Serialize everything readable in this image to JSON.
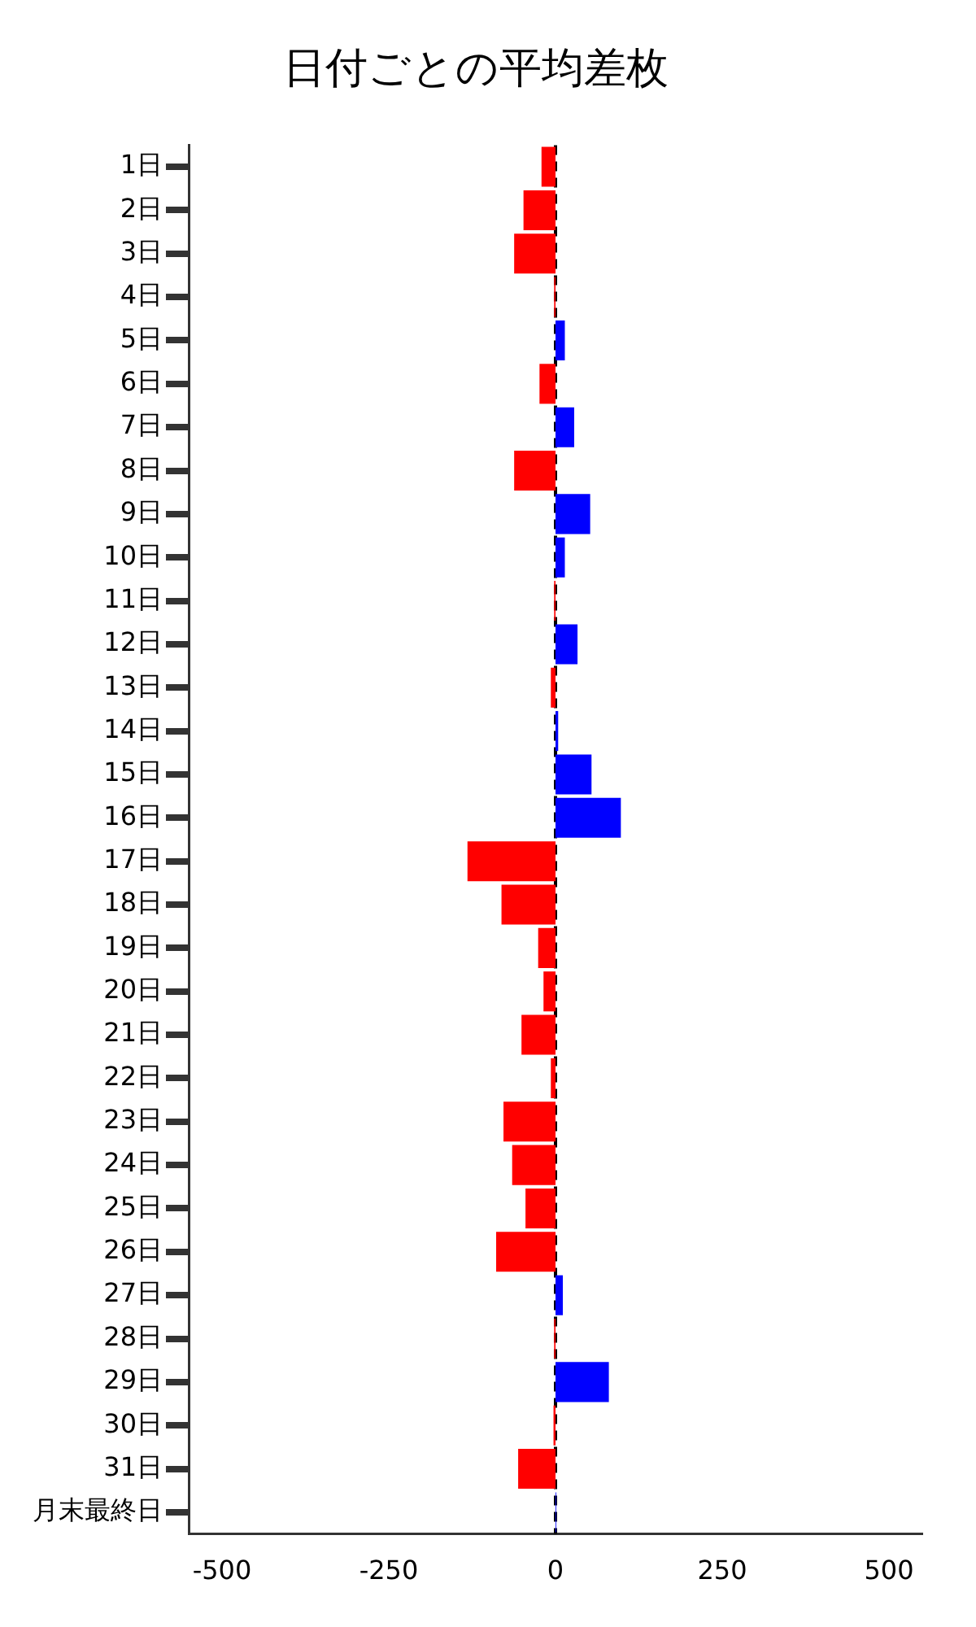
{
  "chart_data": {
    "type": "bar",
    "orientation": "horizontal",
    "title": "日付ごとの平均差枚",
    "categories": [
      "1日",
      "2日",
      "3日",
      "4日",
      "5日",
      "6日",
      "7日",
      "8日",
      "9日",
      "10日",
      "11日",
      "12日",
      "13日",
      "14日",
      "15日",
      "16日",
      "17日",
      "18日",
      "19日",
      "20日",
      "21日",
      "22日",
      "23日",
      "24日",
      "25日",
      "26日",
      "27日",
      "28日",
      "29日",
      "30日",
      "31日",
      "月末最終日"
    ],
    "values": [
      -21,
      -48,
      -62,
      -2,
      14,
      -24,
      28,
      -62,
      52,
      14,
      -2,
      33,
      -7,
      4,
      54,
      98,
      -132,
      -81,
      -26,
      -18,
      -51,
      -7,
      -78,
      -65,
      -45,
      -89,
      11,
      -2,
      80,
      -3,
      -56,
      1
    ],
    "colors": [
      "#ff0000",
      "#ff0000",
      "#ff0000",
      "#ff0000",
      "#0000ff",
      "#ff0000",
      "#0000ff",
      "#ff0000",
      "#0000ff",
      "#0000ff",
      "#ff0000",
      "#0000ff",
      "#ff0000",
      "#0000ff",
      "#0000ff",
      "#0000ff",
      "#ff0000",
      "#ff0000",
      "#ff0000",
      "#ff0000",
      "#ff0000",
      "#ff0000",
      "#ff0000",
      "#ff0000",
      "#ff0000",
      "#ff0000",
      "#0000ff",
      "#ff0000",
      "#0000ff",
      "#ff0000",
      "#ff0000",
      "#0000ff"
    ],
    "xlim": [
      -550,
      550
    ],
    "xticks": [
      -500,
      -250,
      0,
      250,
      500
    ],
    "ref_lines": [
      {
        "axis": "x",
        "value": 0,
        "label": null,
        "color": "#000000",
        "line_style": "dashed"
      }
    ],
    "grid": false,
    "legend": false
  }
}
